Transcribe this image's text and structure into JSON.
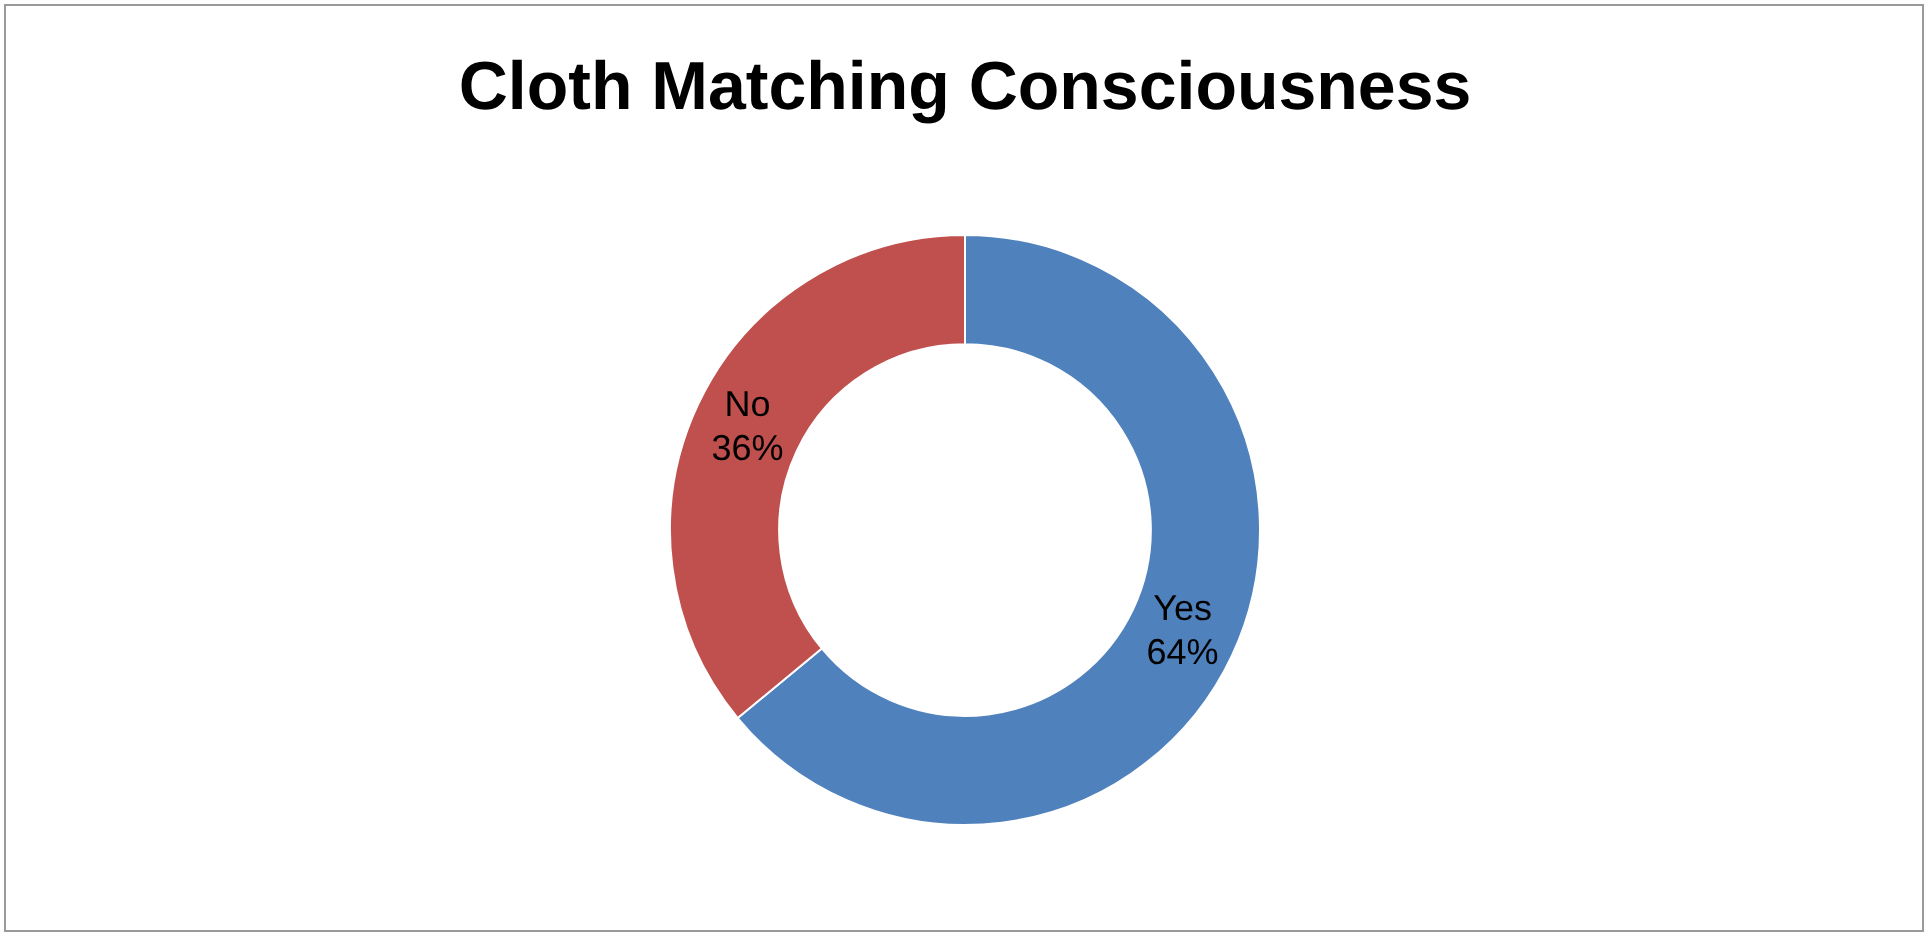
{
  "chart_data": {
    "type": "donut",
    "title": "Cloth Matching Consciousness",
    "categories": [
      "Yes",
      "No"
    ],
    "values": [
      64,
      36
    ],
    "colors": [
      "#4f81bd",
      "#c0504d"
    ],
    "value_labels": [
      "64%",
      "36%"
    ],
    "legend": false
  }
}
